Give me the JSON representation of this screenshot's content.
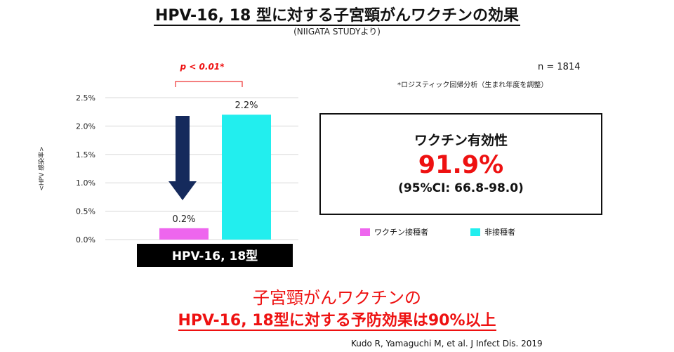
{
  "title": "HPV-16, 18 型に対する子宮頸がんワクチンの効果",
  "subtitle": "(NIIGATA STUDYより)",
  "sample_size": "n = 1814",
  "method_note": "*ロジスティック回帰分析（生まれ年度を調整）",
  "chart_data": {
    "type": "bar",
    "categories": [
      "HPV-16, 18型"
    ],
    "series": [
      {
        "name": "ワクチン接種者",
        "values": [
          0.2
        ],
        "label": "0.2%",
        "color": "#ee66ee"
      },
      {
        "name": "非接種者",
        "values": [
          2.2
        ],
        "label": "2.2%",
        "color": "#22eeee"
      }
    ],
    "ylabel": "<HPV 感染率>",
    "ylim": [
      0,
      2.5
    ],
    "yticks": [
      "0.0%",
      "0.5%",
      "1.0%",
      "1.5%",
      "2.0%",
      "2.5%"
    ],
    "grid": true,
    "significance": "p < 0.01*",
    "arrow_color": "#152a5c",
    "category_box_color": "#000000"
  },
  "effectiveness": {
    "label": "ワクチン有効性",
    "value": "91.9%",
    "ci": "(95%CI: 66.8-98.0)"
  },
  "conclusion": {
    "line1": "子宮頸がんワクチンの",
    "line2": "HPV-16, 18型に対する予防効果は90%以上"
  },
  "citation": "Kudo R, Yamaguchi M, et al. J Infect Dis. 2019"
}
